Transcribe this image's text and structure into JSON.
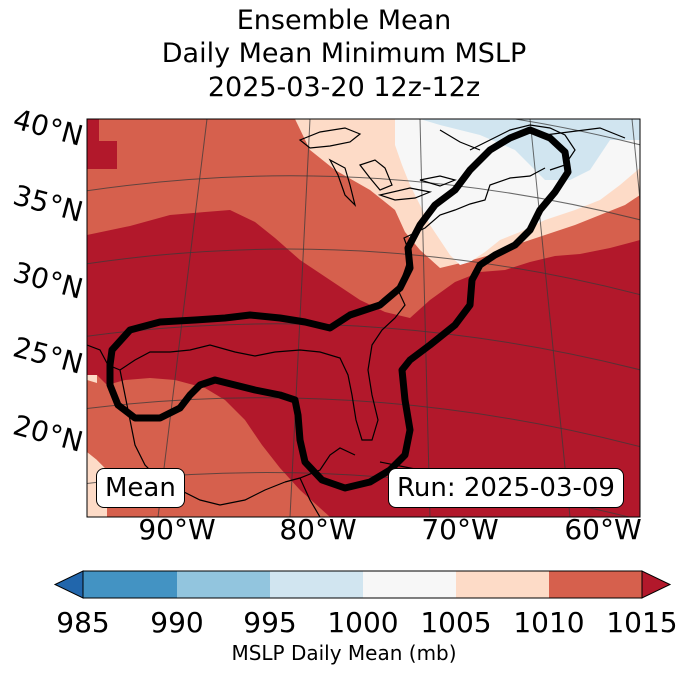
{
  "title": {
    "line1": "Ensemble Mean",
    "line2": "Daily Mean Minimum MSLP",
    "line3": "2025-03-20 12z-12z"
  },
  "map": {
    "lat_labels": [
      "40°N",
      "35°N",
      "30°N",
      "25°N",
      "20°N"
    ],
    "lon_labels": [
      "90°W",
      "80°W",
      "70°W",
      "60°W"
    ],
    "mean_box": "Mean",
    "run_box": "Run: 2025-03-09"
  },
  "colorbar": {
    "ticks": [
      "985",
      "990",
      "995",
      "1000",
      "1005",
      "1010",
      "1015"
    ],
    "label": "MSLP Daily Mean (mb)",
    "colors": {
      "under": "#2166ac",
      "985-990": "#4393c3",
      "990-995": "#92c5de",
      "995-1000": "#d1e5f0",
      "1000-1005": "#f7f7f7",
      "1005-1010": "#fddbc7",
      "1010-1015": "#d6604d",
      "over": "#b2182b"
    }
  }
}
